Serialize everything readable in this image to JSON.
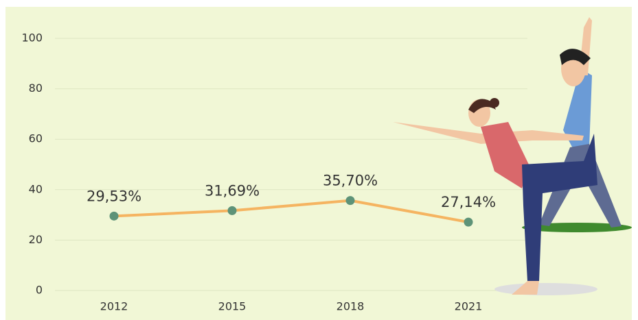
{
  "chart_data": {
    "type": "line",
    "categories": [
      "2012",
      "2015",
      "2018",
      "2021"
    ],
    "series": [
      {
        "color": "#f5b461",
        "marker_color": "#5e9378",
        "values": [
          29.53,
          31.69,
          35.7,
          27.14
        ],
        "value_labels": [
          "29,53%",
          "31,69%",
          "35,70%",
          "27,14%"
        ]
      }
    ],
    "ylim": [
      0,
      100
    ],
    "yticks": [
      0,
      20,
      40,
      60,
      80,
      100
    ],
    "grid": true
  }
}
